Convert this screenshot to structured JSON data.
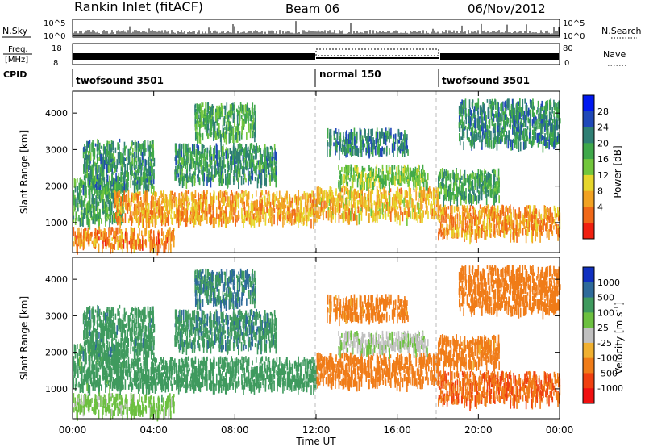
{
  "header": {
    "station": "Rankin Inlet (fitACF)",
    "beam": "Beam 06",
    "date": "06/Nov/2012"
  },
  "nsky_panel": {
    "left_label": "N.Sky",
    "right_label": "N.Search",
    "left_ticks": [
      "10^5",
      "10^0"
    ],
    "right_ticks": [
      "10^5",
      "10^0"
    ]
  },
  "freq_panel": {
    "left_label_top": "Freq.",
    "left_label_bottom": "[MHz]",
    "right_label": "Nave",
    "left_ticks": [
      "18",
      "8"
    ],
    "right_ticks": [
      "80",
      "0"
    ]
  },
  "cpid_panel": {
    "label": "CPID",
    "modes": [
      {
        "name": "twofsound 3501",
        "start_hour": 0,
        "end_hour": 12
      },
      {
        "name": "normal 150",
        "start_hour": 12,
        "end_hour": 18
      },
      {
        "name": "twofsound 3501",
        "start_hour": 18,
        "end_hour": 24
      }
    ]
  },
  "power_panel": {
    "ylabel": "Slant Range [km]",
    "yticks": [
      "4000",
      "3000",
      "2000",
      "1000"
    ],
    "colorbar_label": "Power [dB]",
    "colorbar_ticks": [
      "28",
      "24",
      "20",
      "16",
      "12",
      "8",
      "4"
    ],
    "colors": [
      "#0018f0",
      "#1f48b8",
      "#2f7f74",
      "#3fa84a",
      "#72c63c",
      "#e6d62c",
      "#f2a222",
      "#f06818",
      "#f02010"
    ]
  },
  "velocity_panel": {
    "ylabel": "Slant Range [km]",
    "yticks": [
      "4000",
      "3000",
      "2000",
      "1000"
    ],
    "colorbar_label": "Velocity [m s",
    "colorbar_label_sup": "-1",
    "colorbar_label_end": "]",
    "colorbar_ticks": [
      "1000",
      "500",
      "100",
      "25",
      "-25",
      "-100",
      "-500",
      "-1000"
    ],
    "colors": [
      "#1030c0",
      "#2e6a9a",
      "#3f9a5e",
      "#6cc040",
      "#c0c0c0",
      "#f0b030",
      "#f07c18",
      "#f04010",
      "#f01010"
    ]
  },
  "x_axis": {
    "label": "Time UT",
    "ticks": [
      "00:00",
      "04:00",
      "08:00",
      "12:00",
      "16:00",
      "20:00",
      "00:00"
    ]
  },
  "chart_data": {
    "type": "heatmap",
    "x": {
      "name": "Time UT",
      "unit": "hour",
      "range": [
        0,
        24
      ]
    },
    "y": {
      "name": "Slant Range",
      "unit": "km",
      "range": [
        180,
        4600
      ]
    },
    "power_range_db": [
      0,
      32
    ],
    "velocity_range_ms": [
      -1200,
      1200
    ],
    "mode_change_hours": [
      12,
      18
    ],
    "scatter_regions": [
      {
        "t0": 0.0,
        "t1": 2.5,
        "r0": 1100,
        "r1": 2300,
        "power": 14,
        "velocity": 200
      },
      {
        "t0": 0.0,
        "t1": 5.0,
        "r0": 400,
        "r1": 900,
        "power": 28,
        "velocity": 50
      },
      {
        "t0": 0.5,
        "t1": 4.0,
        "r0": 2000,
        "r1": 3300,
        "power": 12,
        "velocity": 350
      },
      {
        "t0": 2.0,
        "t1": 12.0,
        "r0": 1100,
        "r1": 1900,
        "power": 26,
        "velocity": 250
      },
      {
        "t0": 5.0,
        "t1": 10.0,
        "r0": 2200,
        "r1": 3200,
        "power": 12,
        "velocity": 400
      },
      {
        "t0": 6.0,
        "t1": 9.0,
        "r0": 3400,
        "r1": 4300,
        "power": 14,
        "velocity": 500
      },
      {
        "t0": 12.0,
        "t1": 18.0,
        "r0": 1200,
        "r1": 2000,
        "power": 24,
        "velocity": -300
      },
      {
        "t0": 13.0,
        "t1": 17.5,
        "r0": 2100,
        "r1": 2600,
        "power": 17,
        "velocity": 15
      },
      {
        "t0": 12.5,
        "t1": 16.5,
        "r0": 3000,
        "r1": 3600,
        "power": 10,
        "velocity": -200
      },
      {
        "t0": 18.0,
        "t1": 24.0,
        "r0": 700,
        "r1": 1500,
        "power": 27,
        "velocity": -450
      },
      {
        "t0": 18.0,
        "t1": 21.0,
        "r0": 1700,
        "r1": 2500,
        "power": 14,
        "velocity": -200
      },
      {
        "t0": 19.0,
        "t1": 24.0,
        "r0": 3200,
        "r1": 4400,
        "power": 11,
        "velocity": -300
      }
    ]
  }
}
